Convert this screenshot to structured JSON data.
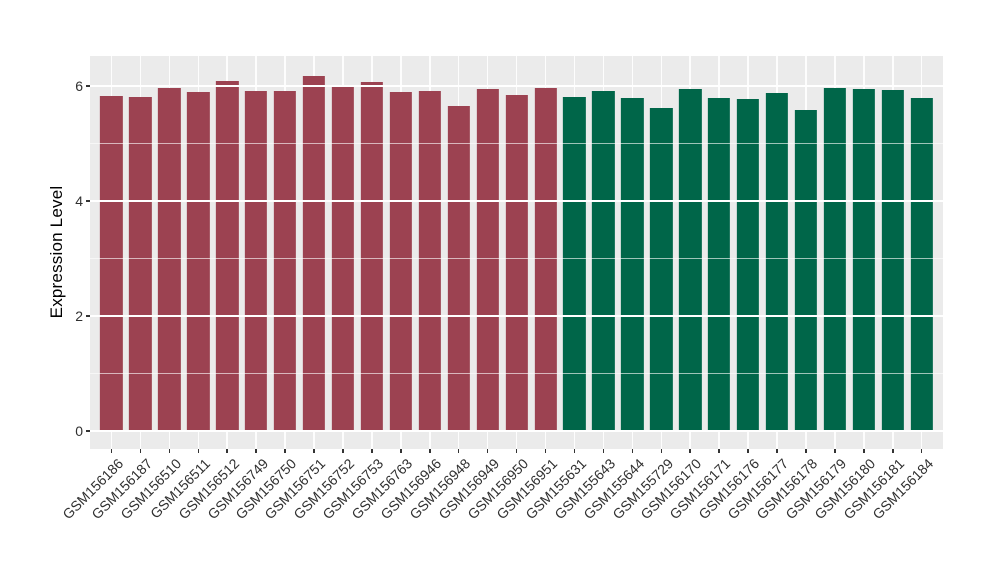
{
  "figure": {
    "background": "#ffffff",
    "panel_background": "#ebebeb",
    "gridline_color": "#ffffff",
    "axis_text_color": "#303030",
    "axis_title_color": "#000000"
  },
  "axes": {
    "y_title": "Expression Level",
    "x_title": "",
    "y_tick_labels": [
      "0",
      "2",
      "4",
      "6"
    ]
  },
  "chart_data": {
    "type": "bar",
    "title": "",
    "xlabel": "",
    "ylabel": "Expression Level",
    "ylim": [
      0,
      6.5
    ],
    "yticks": [
      0,
      2,
      4,
      6
    ],
    "yticks_minor": [
      1,
      3,
      5
    ],
    "grid": true,
    "legend": false,
    "group_colors": [
      "#9c4251",
      "#006649"
    ],
    "bars": [
      {
        "label": "GSM156186",
        "value": 5.83,
        "color": "#9c4251"
      },
      {
        "label": "GSM156187",
        "value": 5.81,
        "color": "#9c4251"
      },
      {
        "label": "GSM156510",
        "value": 5.97,
        "color": "#9c4251"
      },
      {
        "label": "GSM156511",
        "value": 5.9,
        "color": "#9c4251"
      },
      {
        "label": "GSM156512",
        "value": 6.08,
        "color": "#9c4251"
      },
      {
        "label": "GSM156749",
        "value": 5.91,
        "color": "#9c4251"
      },
      {
        "label": "GSM156750",
        "value": 5.92,
        "color": "#9c4251"
      },
      {
        "label": "GSM156751",
        "value": 6.17,
        "color": "#9c4251"
      },
      {
        "label": "GSM156752",
        "value": 5.99,
        "color": "#9c4251"
      },
      {
        "label": "GSM156753",
        "value": 6.07,
        "color": "#9c4251"
      },
      {
        "label": "GSM156763",
        "value": 5.9,
        "color": "#9c4251"
      },
      {
        "label": "GSM156946",
        "value": 5.92,
        "color": "#9c4251"
      },
      {
        "label": "GSM156948",
        "value": 5.66,
        "color": "#9c4251"
      },
      {
        "label": "GSM156949",
        "value": 5.95,
        "color": "#9c4251"
      },
      {
        "label": "GSM156950",
        "value": 5.84,
        "color": "#9c4251"
      },
      {
        "label": "GSM156951",
        "value": 5.96,
        "color": "#9c4251"
      },
      {
        "label": "GSM155631",
        "value": 5.81,
        "color": "#006649"
      },
      {
        "label": "GSM155643",
        "value": 5.92,
        "color": "#006649"
      },
      {
        "label": "GSM155644",
        "value": 5.8,
        "color": "#006649"
      },
      {
        "label": "GSM155729",
        "value": 5.62,
        "color": "#006649"
      },
      {
        "label": "GSM156170",
        "value": 5.95,
        "color": "#006649"
      },
      {
        "label": "GSM156171",
        "value": 5.8,
        "color": "#006649"
      },
      {
        "label": "GSM156176",
        "value": 5.78,
        "color": "#006649"
      },
      {
        "label": "GSM156177",
        "value": 5.88,
        "color": "#006649"
      },
      {
        "label": "GSM156178",
        "value": 5.58,
        "color": "#006649"
      },
      {
        "label": "GSM156179",
        "value": 5.97,
        "color": "#006649"
      },
      {
        "label": "GSM156180",
        "value": 5.94,
        "color": "#006649"
      },
      {
        "label": "GSM156181",
        "value": 5.93,
        "color": "#006649"
      },
      {
        "label": "GSM156184",
        "value": 5.79,
        "color": "#006649"
      }
    ]
  }
}
